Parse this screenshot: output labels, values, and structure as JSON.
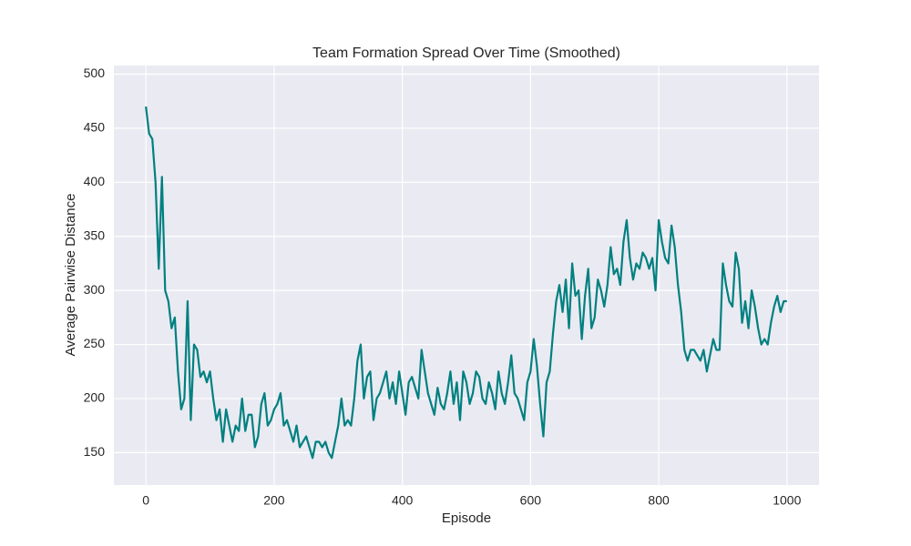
{
  "chart_data": {
    "type": "line",
    "title": "Team Formation Spread Over Time (Smoothed)",
    "x_label": "Episode",
    "y_label": "Average Pairwise Distance",
    "color": "#008080",
    "grid": true,
    "xlim": [
      -50,
      1050
    ],
    "ylim": [
      120,
      508
    ],
    "xticks": [
      0,
      200,
      400,
      600,
      800,
      1000
    ],
    "yticks": [
      150,
      200,
      250,
      300,
      350,
      400,
      450,
      500
    ],
    "x": [
      0,
      5,
      10,
      15,
      20,
      25,
      30,
      35,
      40,
      45,
      50,
      55,
      60,
      65,
      70,
      75,
      80,
      85,
      90,
      95,
      100,
      105,
      110,
      115,
      120,
      125,
      130,
      135,
      140,
      145,
      150,
      155,
      160,
      165,
      170,
      175,
      180,
      185,
      190,
      195,
      200,
      205,
      210,
      215,
      220,
      225,
      230,
      235,
      240,
      245,
      250,
      255,
      260,
      265,
      270,
      275,
      280,
      285,
      290,
      295,
      300,
      305,
      310,
      315,
      320,
      325,
      330,
      335,
      340,
      345,
      350,
      355,
      360,
      365,
      370,
      375,
      380,
      385,
      390,
      395,
      400,
      405,
      410,
      415,
      420,
      425,
      430,
      435,
      440,
      445,
      450,
      455,
      460,
      465,
      470,
      475,
      480,
      485,
      490,
      495,
      500,
      505,
      510,
      515,
      520,
      525,
      530,
      535,
      540,
      545,
      550,
      555,
      560,
      565,
      570,
      575,
      580,
      585,
      590,
      595,
      600,
      605,
      610,
      615,
      620,
      625,
      630,
      635,
      640,
      645,
      650,
      655,
      660,
      665,
      670,
      675,
      680,
      685,
      690,
      695,
      700,
      705,
      710,
      715,
      720,
      725,
      730,
      735,
      740,
      745,
      750,
      755,
      760,
      765,
      770,
      775,
      780,
      785,
      790,
      795,
      800,
      805,
      810,
      815,
      820,
      825,
      830,
      835,
      840,
      845,
      850,
      855,
      860,
      865,
      870,
      875,
      880,
      885,
      890,
      895,
      900,
      905,
      910,
      915,
      920,
      925,
      930,
      935,
      940,
      945,
      950,
      955,
      960,
      965,
      970,
      975,
      980,
      985,
      990,
      995,
      1000
    ],
    "values": [
      470,
      445,
      440,
      400,
      320,
      405,
      300,
      290,
      265,
      275,
      225,
      190,
      200,
      290,
      180,
      250,
      245,
      220,
      225,
      215,
      225,
      200,
      180,
      190,
      160,
      190,
      175,
      160,
      175,
      170,
      200,
      170,
      185,
      185,
      155,
      165,
      195,
      205,
      175,
      180,
      190,
      195,
      205,
      175,
      180,
      170,
      160,
      175,
      155,
      160,
      165,
      155,
      145,
      160,
      160,
      155,
      160,
      150,
      145,
      160,
      175,
      200,
      175,
      180,
      175,
      200,
      235,
      250,
      200,
      220,
      225,
      180,
      200,
      205,
      215,
      225,
      200,
      215,
      195,
      225,
      205,
      185,
      215,
      220,
      210,
      200,
      245,
      225,
      205,
      195,
      185,
      210,
      195,
      190,
      205,
      225,
      195,
      215,
      180,
      225,
      215,
      195,
      205,
      225,
      220,
      200,
      195,
      215,
      205,
      190,
      225,
      205,
      195,
      215,
      240,
      205,
      200,
      190,
      180,
      215,
      225,
      255,
      230,
      195,
      165,
      215,
      225,
      260,
      290,
      305,
      280,
      310,
      265,
      325,
      295,
      300,
      255,
      295,
      320,
      265,
      275,
      310,
      300,
      285,
      305,
      340,
      315,
      320,
      305,
      345,
      365,
      330,
      310,
      325,
      320,
      335,
      330,
      320,
      330,
      300,
      365,
      345,
      330,
      325,
      360,
      340,
      305,
      280,
      245,
      235,
      245,
      245,
      240,
      235,
      245,
      225,
      240,
      255,
      245,
      245,
      325,
      305,
      290,
      285,
      335,
      320,
      270,
      290,
      265,
      300,
      285,
      265,
      250,
      255,
      250,
      270,
      285,
      295,
      280,
      290,
      290
    ]
  }
}
